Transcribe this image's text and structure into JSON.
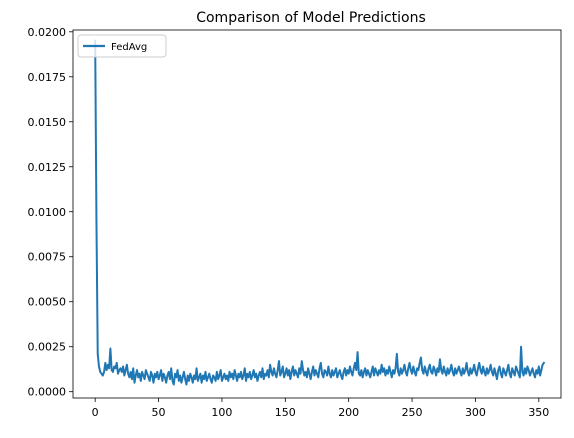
{
  "chart_data": {
    "type": "line",
    "title": "Comparison of Model Predictions",
    "xlabel": "",
    "ylabel": "",
    "xlim": [
      -17.5,
      367.5
    ],
    "ylim": [
      -0.00035,
      0.0201
    ],
    "x_ticks": [
      0,
      50,
      100,
      150,
      200,
      250,
      300,
      350
    ],
    "x_tick_labels": [
      "0",
      "50",
      "100",
      "150",
      "200",
      "250",
      "300",
      "350"
    ],
    "y_ticks": [
      0.0,
      0.0025,
      0.005,
      0.0075,
      0.01,
      0.0125,
      0.015,
      0.0175,
      0.02
    ],
    "y_tick_labels": [
      "0.0000",
      "0.0025",
      "0.0050",
      "0.0075",
      "0.0100",
      "0.0125",
      "0.0150",
      "0.0175",
      "0.0200"
    ],
    "grid": false,
    "legend": {
      "position": "top-left",
      "entries": [
        "FedAvg"
      ]
    },
    "series": [
      {
        "name": "FedAvg",
        "color": "#1f77b4",
        "x_start": 0,
        "x_step": 1,
        "values": [
          0.0195,
          0.0095,
          0.0021,
          0.0014,
          0.0011,
          0.001,
          0.0009,
          0.0011,
          0.0016,
          0.0012,
          0.0015,
          0.0013,
          0.0024,
          0.0012,
          0.0011,
          0.0014,
          0.0013,
          0.0016,
          0.001,
          0.0012,
          0.0013,
          0.0011,
          0.0014,
          0.0009,
          0.0012,
          0.0015,
          0.001,
          0.0008,
          0.0011,
          0.0007,
          0.0013,
          0.0005,
          0.0009,
          0.0012,
          0.0008,
          0.001,
          0.0006,
          0.0011,
          0.0009,
          0.0007,
          0.0012,
          0.001,
          0.0008,
          0.0006,
          0.0011,
          0.0009,
          0.0005,
          0.001,
          0.0008,
          0.0011,
          0.0007,
          0.0009,
          0.0012,
          0.0006,
          0.001,
          0.0008,
          0.0005,
          0.0009,
          0.0011,
          0.0007,
          0.0013,
          0.0006,
          0.0004,
          0.001,
          0.0008,
          0.0012,
          0.0006,
          0.0009,
          0.0005,
          0.0008,
          0.0011,
          0.0007,
          0.0004,
          0.0009,
          0.0006,
          0.001,
          0.0008,
          0.0005,
          0.0009,
          0.0007,
          0.0013,
          0.0006,
          0.0008,
          0.001,
          0.0005,
          0.0009,
          0.0007,
          0.0011,
          0.0006,
          0.0008,
          0.001,
          0.0007,
          0.0005,
          0.0009,
          0.0008,
          0.0006,
          0.0011,
          0.0007,
          0.0009,
          0.0012,
          0.0006,
          0.0008,
          0.001,
          0.0007,
          0.0009,
          0.0006,
          0.0011,
          0.0008,
          0.001,
          0.0007,
          0.0012,
          0.0009,
          0.0006,
          0.001,
          0.0008,
          0.0011,
          0.0007,
          0.0009,
          0.0013,
          0.0006,
          0.001,
          0.0008,
          0.0011,
          0.0007,
          0.0009,
          0.0012,
          0.0008,
          0.001,
          0.0006,
          0.0009,
          0.0011,
          0.0008,
          0.0013,
          0.0007,
          0.001,
          0.0009,
          0.0012,
          0.0008,
          0.0015,
          0.0011,
          0.0009,
          0.0013,
          0.001,
          0.0008,
          0.0012,
          0.0017,
          0.0009,
          0.0011,
          0.0014,
          0.0008,
          0.001,
          0.0013,
          0.0009,
          0.0012,
          0.0007,
          0.0011,
          0.0014,
          0.0009,
          0.0012,
          0.001,
          0.0008,
          0.0013,
          0.001,
          0.0017,
          0.0012,
          0.0009,
          0.0011,
          0.0008,
          0.0013,
          0.001,
          0.0007,
          0.0011,
          0.0014,
          0.0009,
          0.0012,
          0.001,
          0.0008,
          0.0013,
          0.0016,
          0.001,
          0.0008,
          0.0012,
          0.0011,
          0.0009,
          0.0014,
          0.001,
          0.0008,
          0.0012,
          0.0009,
          0.0011,
          0.0013,
          0.0008,
          0.001,
          0.0012,
          0.0009,
          0.0007,
          0.0011,
          0.0013,
          0.0009,
          0.0012,
          0.001,
          0.0014,
          0.0011,
          0.0009,
          0.0013,
          0.0016,
          0.0012,
          0.0022,
          0.001,
          0.0009,
          0.0012,
          0.0008,
          0.0011,
          0.0013,
          0.0009,
          0.0012,
          0.001,
          0.0008,
          0.0011,
          0.0014,
          0.0009,
          0.0013,
          0.0011,
          0.0009,
          0.0012,
          0.001,
          0.0015,
          0.0011,
          0.0013,
          0.0009,
          0.0012,
          0.001,
          0.0014,
          0.0011,
          0.0008,
          0.0012,
          0.001,
          0.0013,
          0.0021,
          0.0011,
          0.0009,
          0.0013,
          0.001,
          0.0012,
          0.0015,
          0.0011,
          0.0009,
          0.0013,
          0.0016,
          0.0012,
          0.001,
          0.0014,
          0.0011,
          0.0009,
          0.0013,
          0.0012,
          0.0016,
          0.0019,
          0.0012,
          0.001,
          0.0014,
          0.0011,
          0.0009,
          0.0013,
          0.0015,
          0.0011,
          0.001,
          0.0014,
          0.0012,
          0.0009,
          0.0013,
          0.0011,
          0.0018,
          0.0012,
          0.001,
          0.0014,
          0.0011,
          0.0009,
          0.0013,
          0.001,
          0.0012,
          0.0015,
          0.0011,
          0.0009,
          0.0013,
          0.001,
          0.0012,
          0.0014,
          0.0011,
          0.0009,
          0.0013,
          0.001,
          0.0012,
          0.0016,
          0.0011,
          0.0009,
          0.0013,
          0.001,
          0.0012,
          0.0015,
          0.0011,
          0.0009,
          0.0013,
          0.0016,
          0.0012,
          0.001,
          0.0014,
          0.0011,
          0.0009,
          0.0013,
          0.001,
          0.0012,
          0.0015,
          0.0011,
          0.0009,
          0.0013,
          0.001,
          0.0007,
          0.0012,
          0.0014,
          0.001,
          0.0008,
          0.0013,
          0.0011,
          0.0009,
          0.0012,
          0.0015,
          0.001,
          0.0008,
          0.0013,
          0.0011,
          0.0009,
          0.0014,
          0.0012,
          0.001,
          0.0008,
          0.0025,
          0.0011,
          0.0009,
          0.0013,
          0.001,
          0.0014,
          0.0012,
          0.0009,
          0.0011,
          0.0013,
          0.001,
          0.0008,
          0.0012,
          0.001,
          0.0014,
          0.0009,
          0.0012,
          0.0015,
          0.0016
        ]
      }
    ]
  }
}
